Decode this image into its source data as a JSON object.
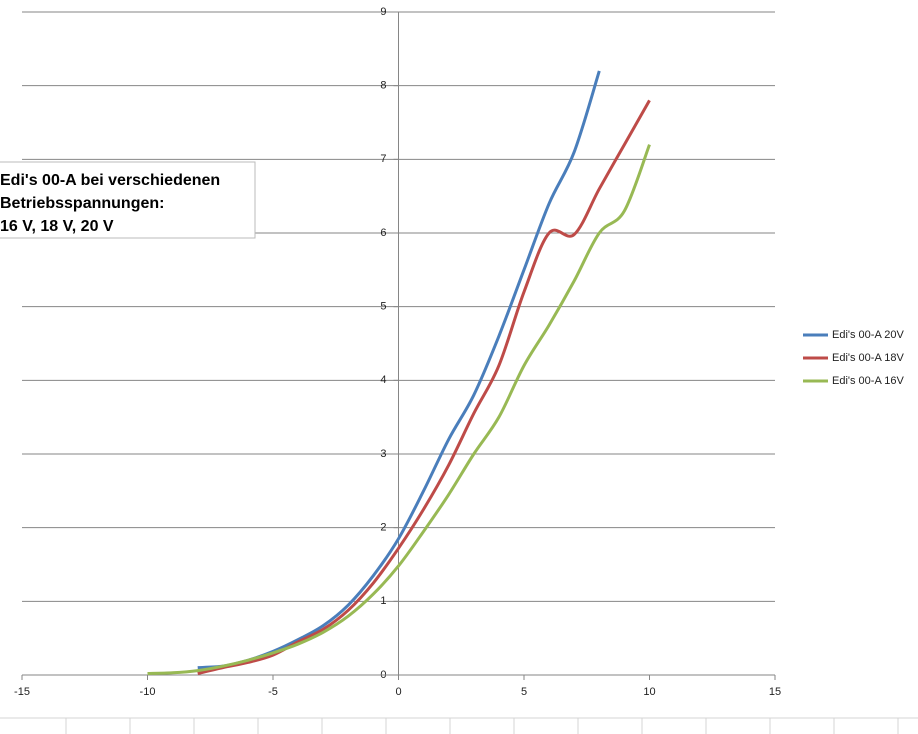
{
  "chart_data": {
    "type": "line",
    "title": [
      "Edi's 00-A bei verschiedenen",
      "Betriebsspannungen:",
      "16 V, 18 V, 20 V"
    ],
    "xlim": [
      -15,
      15
    ],
    "xticks": [
      -15,
      -10,
      -5,
      0,
      5,
      10,
      15
    ],
    "ylim": [
      0,
      9
    ],
    "yticks": [
      0,
      1,
      2,
      3,
      4,
      5,
      6,
      7,
      8,
      9
    ],
    "grid": true,
    "smooth": true,
    "legend": "right",
    "series": [
      {
        "name": "Edi's 00-A 20V",
        "color": "#4a7ebb",
        "x": [
          -8,
          -7,
          -6,
          -5,
          -4,
          -3,
          -2,
          -1,
          0,
          1,
          2,
          3,
          4,
          5,
          6,
          7,
          8
        ],
        "values": [
          0.1,
          0.12,
          0.2,
          0.32,
          0.48,
          0.67,
          0.95,
          1.35,
          1.85,
          2.5,
          3.2,
          3.8,
          4.6,
          5.5,
          6.4,
          7.1,
          8.2
        ]
      },
      {
        "name": "Edi's 00-A 18V",
        "color": "#be4b48",
        "x": [
          -8,
          -7,
          -6,
          -5,
          -4,
          -3,
          -2,
          -1,
          0,
          1,
          2,
          3,
          4,
          5,
          6,
          7,
          8,
          9,
          10
        ],
        "values": [
          0.02,
          0.1,
          0.17,
          0.27,
          0.45,
          0.62,
          0.88,
          1.25,
          1.72,
          2.25,
          2.85,
          3.55,
          4.2,
          5.2,
          6.0,
          5.98,
          6.6,
          7.2,
          7.8
        ]
      },
      {
        "name": "Edi's 00-A 16V",
        "color": "#98b954",
        "x": [
          -10,
          -9,
          -8,
          -7,
          -6,
          -5,
          -4,
          -3,
          -2,
          -1,
          0,
          1,
          2,
          3,
          4,
          5,
          6,
          7,
          8,
          9,
          10
        ],
        "values": [
          0.02,
          0.03,
          0.06,
          0.12,
          0.2,
          0.3,
          0.42,
          0.58,
          0.8,
          1.1,
          1.48,
          1.95,
          2.45,
          3.0,
          3.5,
          4.2,
          4.75,
          5.35,
          6.0,
          6.3,
          7.2
        ]
      }
    ]
  }
}
